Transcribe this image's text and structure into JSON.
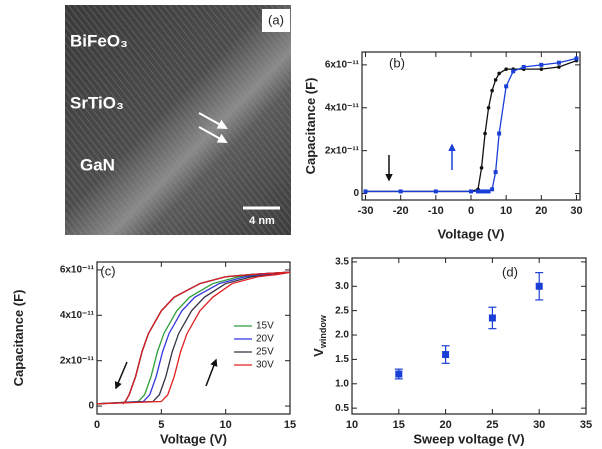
{
  "panel_a": {
    "label": "(a)",
    "layers": [
      "BiFeO₃",
      "SrTiO₃",
      "GaN"
    ],
    "scale_bar": "4 nm"
  },
  "chart_data": [
    {
      "type": "line",
      "label": "(b)",
      "xlabel": "Voltage (V)",
      "ylabel": "Capacitance (F)",
      "xlim": [
        -31,
        31
      ],
      "xticks": [
        -30,
        -20,
        -10,
        0,
        10,
        20,
        30
      ],
      "ylim": [
        -3e-12,
        6.6e-11
      ],
      "yticks": [
        0,
        {
          "value": 2e-11,
          "label": "2x10⁻¹¹"
        },
        {
          "value": 4e-11,
          "label": "4x10⁻¹¹"
        },
        {
          "value": 6e-11,
          "label": "6x10⁻¹¹"
        }
      ],
      "x": [
        -30,
        -20,
        -10,
        0,
        2,
        3,
        4,
        5,
        6,
        7,
        8,
        10,
        12,
        15,
        20,
        25,
        30
      ],
      "series": [
        {
          "color": "#111111",
          "marker": "circle",
          "values": [
            1e-12,
            1e-12,
            1e-12,
            1e-12,
            2e-12,
            1.2e-11,
            2.8e-11,
            4e-11,
            4.8e-11,
            5.3e-11,
            5.6e-11,
            5.8e-11,
            5.8e-11,
            5.8e-11,
            5.8e-11,
            5.9e-11,
            6.2e-11
          ]
        },
        {
          "color": "#1a3fd6",
          "marker": "square",
          "values": [
            1e-12,
            1e-12,
            1e-12,
            1e-12,
            1e-12,
            1e-12,
            1e-12,
            1e-12,
            2e-12,
            1e-11,
            2.8e-11,
            5e-11,
            5.7e-11,
            5.9e-11,
            6e-11,
            6.1e-11,
            6.3e-11
          ]
        }
      ]
    },
    {
      "type": "line",
      "label": "(c)",
      "xlabel": "Voltage (V)",
      "ylabel": "Capacitance (F)",
      "xlim": [
        0,
        15
      ],
      "xticks": [
        0,
        5,
        10,
        15
      ],
      "ylim": [
        -3.5e-12,
        6.35e-11
      ],
      "yticks": [
        0,
        {
          "value": 2e-11,
          "label": "2x10⁻¹¹"
        },
        {
          "value": 4e-11,
          "label": "4x10⁻¹¹"
        },
        {
          "value": 6e-11,
          "label": "6x10⁻¹¹"
        }
      ],
      "legend": "lower right",
      "series": [
        {
          "name": "15V",
          "color": "#2e9e3a",
          "x": [
            0,
            3.2,
            3.7,
            4.2,
            4.7,
            5.2,
            6.2,
            7.2,
            9,
            11,
            13,
            15,
            12,
            10,
            8,
            6,
            5,
            4,
            3.5,
            3,
            2.5,
            2.2,
            2
          ],
          "values": [
            1e-12,
            2e-12,
            5e-12,
            1.3e-11,
            2.4e-11,
            3.2e-11,
            4.2e-11,
            4.8e-11,
            5.4e-11,
            5.7e-11,
            5.8e-11,
            5.9e-11,
            5.8e-11,
            5.7e-11,
            5.4e-11,
            4.8e-11,
            4.2e-11,
            3.2e-11,
            2.4e-11,
            1.3e-11,
            5e-12,
            2e-12,
            1e-12
          ]
        },
        {
          "name": "20V",
          "color": "#3535e0",
          "x": [
            0,
            3.6,
            4.1,
            4.6,
            5.1,
            5.6,
            6.6,
            7.6,
            9.5,
            11.5,
            13.5,
            15,
            12,
            10,
            8,
            6,
            5,
            4,
            3.5,
            3,
            2.5,
            2.2,
            2
          ],
          "values": [
            1e-12,
            2e-12,
            5e-12,
            1.3e-11,
            2.4e-11,
            3.2e-11,
            4.2e-11,
            4.8e-11,
            5.4e-11,
            5.7e-11,
            5.8e-11,
            5.9e-11,
            5.8e-11,
            5.7e-11,
            5.4e-11,
            4.8e-11,
            4.2e-11,
            3.2e-11,
            2.4e-11,
            1.3e-11,
            5e-12,
            2e-12,
            1e-12
          ]
        },
        {
          "name": "25V",
          "color": "#333344",
          "x": [
            0,
            4.35,
            4.85,
            5.35,
            5.85,
            6.35,
            7.35,
            8.35,
            10,
            12,
            14,
            15,
            12,
            10,
            8,
            6,
            5,
            4,
            3.5,
            3,
            2.5,
            2.2,
            2
          ],
          "values": [
            1e-12,
            2e-12,
            5e-12,
            1.3e-11,
            2.4e-11,
            3.2e-11,
            4.2e-11,
            4.8e-11,
            5.4e-11,
            5.7e-11,
            5.8e-11,
            5.9e-11,
            5.8e-11,
            5.7e-11,
            5.4e-11,
            4.8e-11,
            4.2e-11,
            3.2e-11,
            2.4e-11,
            1.3e-11,
            5e-12,
            2e-12,
            1e-12
          ]
        },
        {
          "name": "30V",
          "color": "#e02020",
          "x": [
            0,
            5,
            5.5,
            6,
            6.5,
            7,
            8,
            9,
            10.5,
            12.5,
            14,
            15,
            12,
            10,
            8,
            6,
            5,
            4,
            3.5,
            3,
            2.5,
            2.2,
            2
          ],
          "values": [
            1e-12,
            2e-12,
            5e-12,
            1.3e-11,
            2.4e-11,
            3.2e-11,
            4.2e-11,
            4.8e-11,
            5.4e-11,
            5.7e-11,
            5.8e-11,
            5.9e-11,
            5.8e-11,
            5.7e-11,
            5.4e-11,
            4.8e-11,
            4.2e-11,
            3.2e-11,
            2.4e-11,
            1.3e-11,
            5e-12,
            2e-12,
            1e-12
          ]
        }
      ]
    },
    {
      "type": "scatter",
      "label": "(d)",
      "xlabel": "Sweep voltage (V)",
      "ylabel": "V",
      "ylabel_sub": "window",
      "xlim": [
        10,
        35
      ],
      "xticks": [
        10,
        15,
        20,
        25,
        30,
        35
      ],
      "ylim": [
        0.38,
        3.58
      ],
      "yticks": [
        0.5,
        {
          "value": 1,
          "label": "1.0"
        },
        1.5,
        {
          "value": 2,
          "label": "2.0"
        },
        2.5,
        {
          "value": 3,
          "label": "3.0"
        },
        3.5
      ],
      "color": "#1a3fd6",
      "x": [
        15,
        20,
        25,
        30
      ],
      "values": [
        1.2,
        1.6,
        2.35,
        3.0
      ],
      "errors": [
        0.1,
        0.18,
        0.22,
        0.28
      ]
    }
  ]
}
